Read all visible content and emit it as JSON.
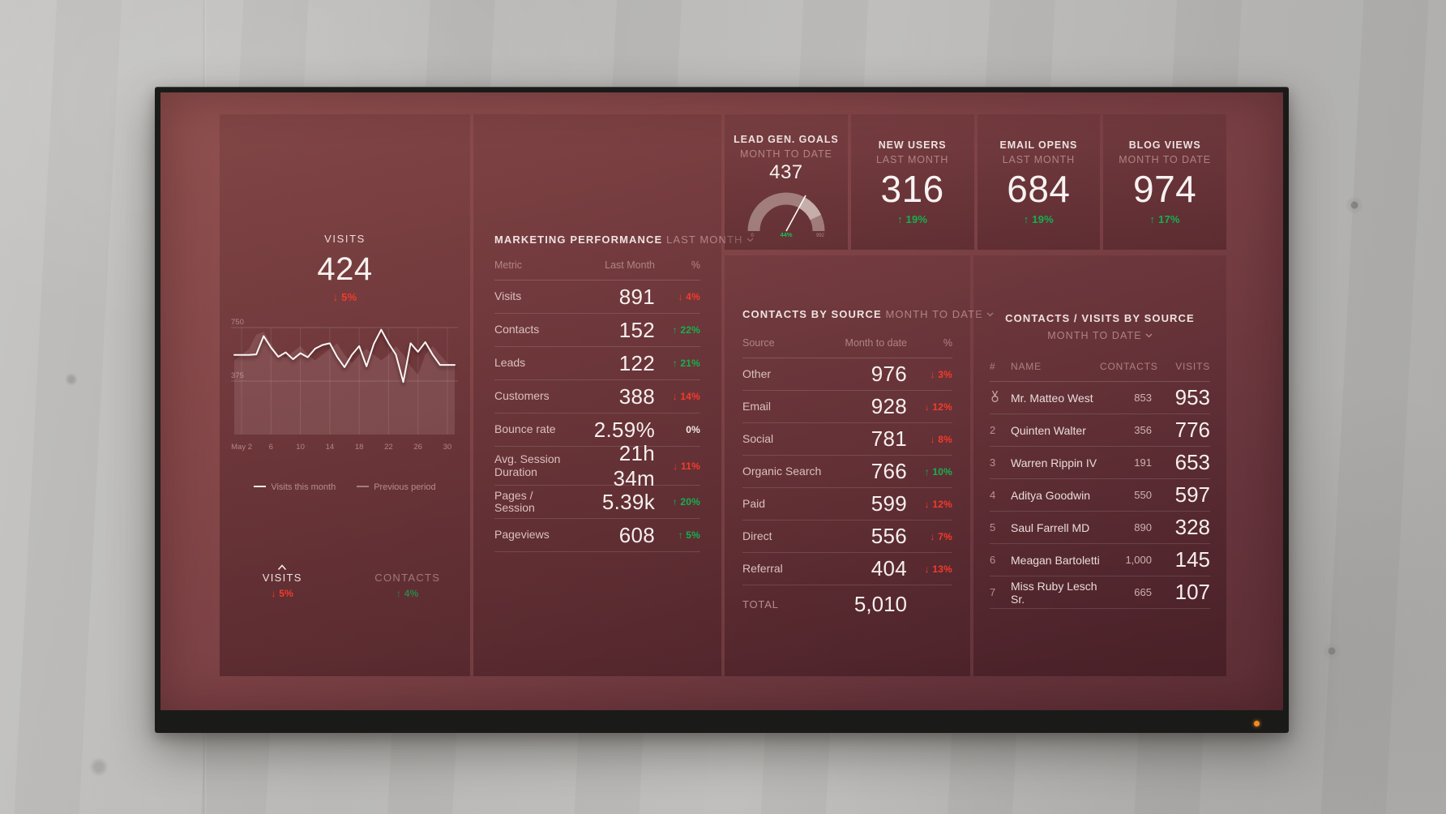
{
  "accent_colors": {
    "up": "#13b250",
    "down": "#f53a2b",
    "led": "#f28b1e"
  },
  "visits_panel": {
    "title": "VISITS",
    "value": "424",
    "delta": "↓ 5%",
    "delta_dir": "down",
    "legend": [
      {
        "label": "Visits this month"
      },
      {
        "label": "Previous period"
      }
    ],
    "tabs": [
      {
        "label": "VISITS",
        "delta": "↓ 5%",
        "dir": "down"
      },
      {
        "label": "CONTACTS",
        "delta": "↑ 4%",
        "dir": "up"
      }
    ]
  },
  "chart_data": {
    "type": "line",
    "title": "Visits daily trend",
    "x_ticks": [
      "May 2",
      "6",
      "10",
      "14",
      "18",
      "22",
      "26",
      "30"
    ],
    "x_tick_days": [
      2,
      6,
      10,
      14,
      18,
      22,
      26,
      30
    ],
    "y_ticks": [
      750,
      375
    ],
    "ylim": [
      0,
      750
    ],
    "grid": true,
    "legend_position": "bottom",
    "series": [
      {
        "name": "Visits this month",
        "values": [
          558,
          558,
          558,
          562,
          690,
          610,
          545,
          576,
          528,
          570,
          542,
          602,
          628,
          640,
          545,
          472,
          558,
          620,
          478,
          636,
          735,
          640,
          560,
          368,
          640,
          580,
          648,
          560,
          488,
          488,
          488
        ]
      },
      {
        "name": "Previous period",
        "values": [
          520,
          560,
          600,
          700,
          720,
          640,
          560,
          540,
          580,
          620,
          560,
          520,
          560,
          600,
          640,
          560,
          500,
          560,
          600,
          560,
          520,
          560,
          620,
          560,
          480,
          420,
          560,
          620,
          560,
          500,
          480
        ]
      }
    ]
  },
  "marketing": {
    "title": "MARKETING PERFORMANCE",
    "period": "LAST MONTH",
    "columns": [
      "Metric",
      "Last Month",
      "%"
    ],
    "rows": [
      {
        "metric": "Visits",
        "value": "891",
        "delta": "↓ 4%",
        "dir": "down"
      },
      {
        "metric": "Contacts",
        "value": "152",
        "delta": "↑ 22%",
        "dir": "up"
      },
      {
        "metric": "Leads",
        "value": "122",
        "delta": "↑ 21%",
        "dir": "up"
      },
      {
        "metric": "Customers",
        "value": "388",
        "delta": "↓ 14%",
        "dir": "down"
      },
      {
        "metric": "Bounce rate",
        "value": "2.59%",
        "delta": "0%",
        "dir": "flat"
      },
      {
        "metric": "Avg. Session Duration",
        "value": "21h 34m",
        "delta": "↓ 11%",
        "dir": "down"
      },
      {
        "metric": "Pages / Session",
        "value": "5.39k",
        "delta": "↑ 20%",
        "dir": "up"
      },
      {
        "metric": "Pageviews",
        "value": "608",
        "delta": "↑ 5%",
        "dir": "up"
      }
    ]
  },
  "kpis": [
    {
      "title": "LEAD GEN. GOALS",
      "period": "MONTH TO DATE",
      "value": "437",
      "gauge": {
        "percent": "44%",
        "min": "0",
        "max": "992",
        "fraction": 0.44
      }
    },
    {
      "title": "NEW USERS",
      "period": "LAST MONTH",
      "value": "316",
      "delta": "↑ 19%",
      "dir": "up"
    },
    {
      "title": "EMAIL OPENS",
      "period": "LAST MONTH",
      "value": "684",
      "delta": "↑ 19%",
      "dir": "up"
    },
    {
      "title": "BLOG VIEWS",
      "period": "MONTH TO DATE",
      "value": "974",
      "delta": "↑ 17%",
      "dir": "up"
    }
  ],
  "contacts_by_source": {
    "title": "CONTACTS BY SOURCE",
    "period": "MONTH TO DATE",
    "columns": [
      "Source",
      "Month to date",
      "%"
    ],
    "rows": [
      {
        "source": "Other",
        "value": "976",
        "delta": "↓ 3%",
        "dir": "down"
      },
      {
        "source": "Email",
        "value": "928",
        "delta": "↓ 12%",
        "dir": "down"
      },
      {
        "source": "Social",
        "value": "781",
        "delta": "↓ 8%",
        "dir": "down"
      },
      {
        "source": "Organic Search",
        "value": "766",
        "delta": "↑ 10%",
        "dir": "up"
      },
      {
        "source": "Paid",
        "value": "599",
        "delta": "↓ 12%",
        "dir": "down"
      },
      {
        "source": "Direct",
        "value": "556",
        "delta": "↓ 7%",
        "dir": "down"
      },
      {
        "source": "Referral",
        "value": "404",
        "delta": "↓ 13%",
        "dir": "down"
      }
    ],
    "total_label": "TOTAL",
    "total_value": "5,010"
  },
  "leaderboard": {
    "title": "CONTACTS / VISITS BY SOURCE",
    "period": "MONTH TO DATE",
    "columns": [
      "#",
      "NAME",
      "CONTACTS",
      "VISITS"
    ],
    "rows": [
      {
        "rank": "1",
        "rank_icon": "medal",
        "name": "Mr. Matteo West",
        "contacts": "853",
        "visits": "953"
      },
      {
        "rank": "2",
        "name": "Quinten Walter",
        "contacts": "356",
        "visits": "776"
      },
      {
        "rank": "3",
        "name": "Warren Rippin IV",
        "contacts": "191",
        "visits": "653"
      },
      {
        "rank": "4",
        "name": "Aditya Goodwin",
        "contacts": "550",
        "visits": "597"
      },
      {
        "rank": "5",
        "name": "Saul Farrell MD",
        "contacts": "890",
        "visits": "328"
      },
      {
        "rank": "6",
        "name": "Meagan Bartoletti",
        "contacts": "1,000",
        "visits": "145"
      },
      {
        "rank": "7",
        "name": "Miss Ruby Lesch Sr.",
        "contacts": "665",
        "visits": "107"
      }
    ]
  }
}
